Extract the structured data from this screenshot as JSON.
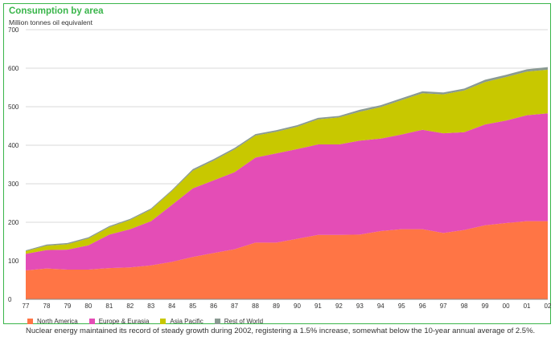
{
  "header": {
    "title": "Consumption by area",
    "subtitle": "Million tonnes oil equivalent"
  },
  "caption": "Nuclear energy maintained its record of steady growth during 2002, registering a 1.5% increase, somewhat below the 10-year annual average of 2.5%.",
  "chart_data": {
    "type": "area",
    "stacked": true,
    "title": "Consumption by area",
    "ylabel": "Million tonnes oil equivalent",
    "xlabel": "",
    "ylim": [
      0,
      700
    ],
    "yticks": [
      0,
      100,
      200,
      300,
      400,
      500,
      600,
      700
    ],
    "grid": true,
    "legend_position": "bottom",
    "categories": [
      "77",
      "78",
      "79",
      "80",
      "81",
      "82",
      "83",
      "84",
      "85",
      "86",
      "87",
      "88",
      "89",
      "90",
      "91",
      "92",
      "93",
      "94",
      "95",
      "96",
      "97",
      "98",
      "99",
      "00",
      "01",
      "02"
    ],
    "series": [
      {
        "name": "North America",
        "color": "#ff7545",
        "values": [
          75,
          80,
          77,
          77,
          81,
          83,
          88,
          97,
          110,
          120,
          130,
          147,
          147,
          157,
          167,
          167,
          168,
          177,
          182,
          182,
          172,
          180,
          192,
          198,
          203,
          203
        ]
      },
      {
        "name": "Europe & Eurasia",
        "color": "#e44db6",
        "values": [
          43,
          48,
          52,
          63,
          87,
          99,
          115,
          148,
          178,
          189,
          200,
          221,
          232,
          233,
          235,
          235,
          244,
          240,
          246,
          258,
          259,
          254,
          262,
          266,
          275,
          280
        ]
      },
      {
        "name": "Asia Pacific",
        "color": "#c8c800",
        "values": [
          7,
          11,
          14,
          18,
          19,
          24,
          30,
          36,
          46,
          51,
          59,
          57,
          56,
          58,
          65,
          70,
          75,
          82,
          89,
          95,
          101,
          108,
          110,
          113,
          113,
          113
        ]
      },
      {
        "name": "Rest of World",
        "color": "#8a9a92",
        "values": [
          2,
          3,
          3,
          3,
          3,
          3,
          3,
          3,
          4,
          4,
          4,
          4,
          4,
          4,
          4,
          4,
          5,
          5,
          5,
          5,
          5,
          5,
          6,
          6,
          6,
          7
        ]
      }
    ]
  }
}
